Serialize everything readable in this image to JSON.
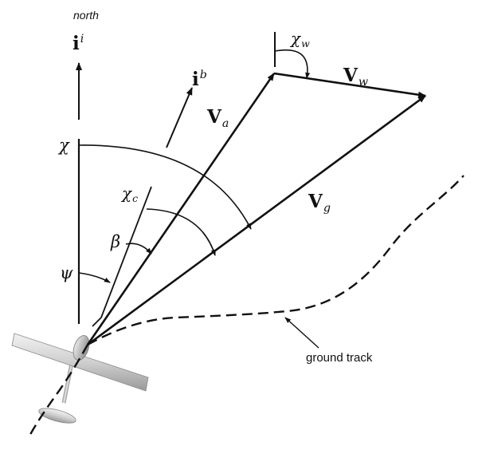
{
  "labels": {
    "north": "north",
    "inertial_base": "i",
    "inertial_sup": "i",
    "body_base": "i",
    "body_sup": "b",
    "va_base": "V",
    "va_sub": "a",
    "vw_base": "V",
    "vw_sub": "w",
    "vg_base": "V",
    "vg_sub": "g",
    "chi": "χ",
    "chi_c_base": "χ",
    "chi_c_sub": "c",
    "chi_w_base": "χ",
    "chi_w_sub": "w",
    "beta": "β",
    "psi": "ψ",
    "ground_track": "ground track"
  },
  "colors": {
    "ink": "#111111",
    "aircraft": "#d4d4d4"
  }
}
